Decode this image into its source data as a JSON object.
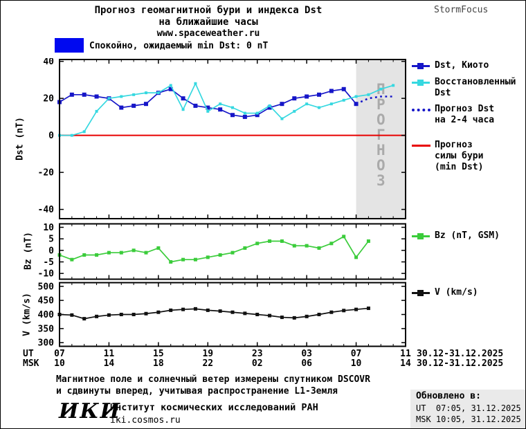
{
  "header": {
    "title_line1": "Прогноз геомагнитной бури и индекса Dst",
    "title_line2": "на ближайшие часы",
    "website": "www.spaceweather.ru",
    "brand": "StormFocus"
  },
  "status": {
    "label": "Спокойно, ожидаемый min Dst: 0 nT",
    "color": "#0009f0"
  },
  "xaxis": {
    "ut_label": "UT",
    "msk_label": "MSK",
    "ut_hours": [
      "07",
      "11",
      "15",
      "19",
      "23",
      "03",
      "07",
      "11"
    ],
    "msk_hours": [
      "10",
      "14",
      "18",
      "22",
      "02",
      "06",
      "10",
      "14"
    ],
    "ut_date": "30.12-31.12.2025",
    "msk_date": "30.12-31.12.2025"
  },
  "legend_dst": {
    "items": [
      {
        "label_lines": [
          "Dst, Киото"
        ]
      },
      {
        "label_lines": [
          "Восстановленный",
          "Dst"
        ]
      },
      {
        "label_lines": [
          "Прогноз Dst",
          "на 2-4 часа"
        ]
      },
      {
        "label_lines": [
          "Прогноз",
          "силы бури",
          "(min Dst)"
        ]
      }
    ]
  },
  "legend_bz": {
    "label": "Bz (nT, GSM)"
  },
  "legend_v": {
    "label": "V (km/s)"
  },
  "footer": {
    "note_line1": "Магнитное поле и солнечный ветер измерены спутником DSCOVR",
    "note_line2": "и сдвинуты вперед, учитывая распространение L1-Земля",
    "logo": "ИКИ",
    "institute": "Институт космических исследований РАН",
    "institute_url": "iki.cosmos.ru",
    "updated_label": "Обновлено в:",
    "updated_ut": "UT  07:05, 31.12.2025",
    "updated_msk": "MSK 10:05, 31.12.2025"
  },
  "chart_data": [
    {
      "type": "line",
      "panel": "dst",
      "ylabel": "Dst (nT)",
      "ylim": [
        -45,
        41
      ],
      "yticks": [
        40,
        20,
        0,
        -20,
        -40
      ],
      "xlim": [
        0,
        28
      ],
      "xticks": [
        0,
        4,
        8,
        12,
        16,
        20,
        24,
        28
      ],
      "x_unit": "hours since 07 UT 30.12.2025",
      "forecast_region": {
        "x_start": 24,
        "x_end": 28,
        "label": "ПРОГНОЗ",
        "fill": "#e4e4e4",
        "label_color": "#aaaaaa"
      },
      "baseline": {
        "y": 0,
        "color": "#e80000"
      },
      "series": [
        {
          "name": "Dst, Киото",
          "color": "#1616c8",
          "marker": "square",
          "line": "solid",
          "x": [
            0,
            1,
            2,
            3,
            4,
            5,
            6,
            7,
            8,
            9,
            10,
            11,
            12,
            13,
            14,
            15,
            16,
            17,
            18,
            19,
            20,
            21,
            22,
            23,
            24
          ],
          "values": [
            18,
            22,
            22,
            21,
            20,
            15,
            16,
            17,
            23,
            25,
            20,
            16,
            15,
            14,
            11,
            10,
            11,
            15,
            17,
            20,
            21,
            22,
            24,
            25,
            17
          ]
        },
        {
          "name": "Восстановленный Dst",
          "color": "#36d8e0",
          "marker": "square",
          "line": "solid",
          "x": [
            0,
            1,
            2,
            3,
            4,
            5,
            6,
            7,
            8,
            9,
            10,
            11,
            12,
            13,
            14,
            15,
            16,
            17,
            18,
            19,
            20,
            21,
            22,
            23,
            24,
            25,
            26,
            27
          ],
          "values": [
            0,
            0,
            2,
            13,
            20,
            21,
            22,
            23,
            23,
            27,
            14,
            28,
            13,
            17,
            15,
            12,
            12,
            16,
            9,
            13,
            17,
            15,
            17,
            19,
            21,
            22,
            25,
            27
          ]
        },
        {
          "name": "Прогноз Dst на 2-4 часа",
          "color": "#1616c8",
          "marker": "none",
          "line": "dotted",
          "x": [
            24,
            25,
            26,
            27
          ],
          "values": [
            17,
            20,
            21,
            21
          ]
        }
      ]
    },
    {
      "type": "line",
      "panel": "bz",
      "ylabel": "Bz (nT)",
      "ylim": [
        -12.5,
        11.5
      ],
      "yticks": [
        10,
        5,
        0,
        -5,
        -10
      ],
      "xlim": [
        0,
        28
      ],
      "xticks": [
        0,
        4,
        8,
        12,
        16,
        20,
        24,
        28
      ],
      "series": [
        {
          "name": "Bz (nT, GSM)",
          "color": "#3bcc3b",
          "marker": "square",
          "line": "solid",
          "x": [
            0,
            1,
            2,
            3,
            4,
            5,
            6,
            7,
            8,
            9,
            10,
            11,
            12,
            13,
            14,
            15,
            16,
            17,
            18,
            19,
            20,
            21,
            22,
            23,
            24,
            25
          ],
          "values": [
            -2,
            -4,
            -2,
            -2,
            -1,
            -1,
            0,
            -1,
            1,
            -5,
            -4,
            -4,
            -3,
            -2,
            -1,
            1,
            3,
            4,
            4,
            2,
            2,
            1,
            3,
            6,
            -3,
            4
          ]
        }
      ]
    },
    {
      "type": "line",
      "panel": "v",
      "ylabel": "V (km/s)",
      "ylim": [
        287,
        513
      ],
      "yticks": [
        500,
        450,
        400,
        350,
        300
      ],
      "xlim": [
        0,
        28
      ],
      "xticks": [
        0,
        4,
        8,
        12,
        16,
        20,
        24,
        28
      ],
      "series": [
        {
          "name": "V (km/s)",
          "color": "#111111",
          "marker": "square",
          "line": "solid",
          "x": [
            0,
            1,
            2,
            3,
            4,
            5,
            6,
            7,
            8,
            9,
            10,
            11,
            12,
            13,
            14,
            15,
            16,
            17,
            18,
            19,
            20,
            21,
            22,
            23,
            24,
            25
          ],
          "values": [
            400,
            398,
            385,
            393,
            398,
            400,
            400,
            403,
            408,
            415,
            418,
            420,
            415,
            412,
            408,
            404,
            400,
            396,
            390,
            388,
            393,
            400,
            408,
            414,
            418,
            422
          ]
        }
      ]
    }
  ]
}
